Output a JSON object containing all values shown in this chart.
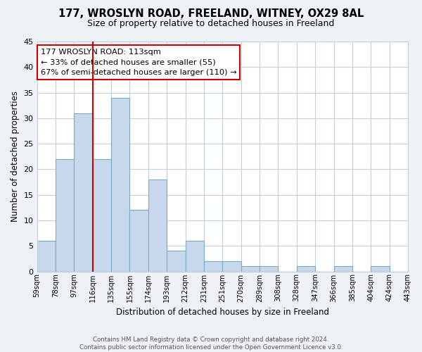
{
  "title": "177, WROSLYN ROAD, FREELAND, WITNEY, OX29 8AL",
  "subtitle": "Size of property relative to detached houses in Freeland",
  "xlabel": "Distribution of detached houses by size in Freeland",
  "ylabel": "Number of detached properties",
  "bin_edges_labels": [
    "59sqm",
    "78sqm",
    "97sqm",
    "116sqm",
    "135sqm",
    "155sqm",
    "174sqm",
    "193sqm",
    "212sqm",
    "231sqm",
    "251sqm",
    "270sqm",
    "289sqm",
    "308sqm",
    "328sqm",
    "347sqm",
    "366sqm",
    "385sqm",
    "404sqm",
    "424sqm",
    "443sqm"
  ],
  "bar_heights": [
    6,
    22,
    31,
    22,
    34,
    12,
    18,
    4,
    6,
    2,
    2,
    1,
    1,
    0,
    1,
    0,
    1,
    0,
    1,
    0
  ],
  "bar_color": "#c8d8ec",
  "bar_edge_color": "#7aaabf",
  "vline_color": "#cc0000",
  "vline_pos": 3,
  "annotation_line1": "177 WROSLYN ROAD: 113sqm",
  "annotation_line2": "← 33% of detached houses are smaller (55)",
  "annotation_line3": "67% of semi-detached houses are larger (110) →",
  "annotation_box_color": "#ffffff",
  "annotation_box_edge_color": "#cc0000",
  "ylim": [
    0,
    45
  ],
  "yticks": [
    0,
    5,
    10,
    15,
    20,
    25,
    30,
    35,
    40,
    45
  ],
  "footer_line1": "Contains HM Land Registry data © Crown copyright and database right 2024.",
  "footer_line2": "Contains public sector information licensed under the Open Government Licence v3.0.",
  "bg_color": "#eef2f7",
  "plot_bg_color": "#ffffff",
  "grid_color": "#c5cdd8"
}
